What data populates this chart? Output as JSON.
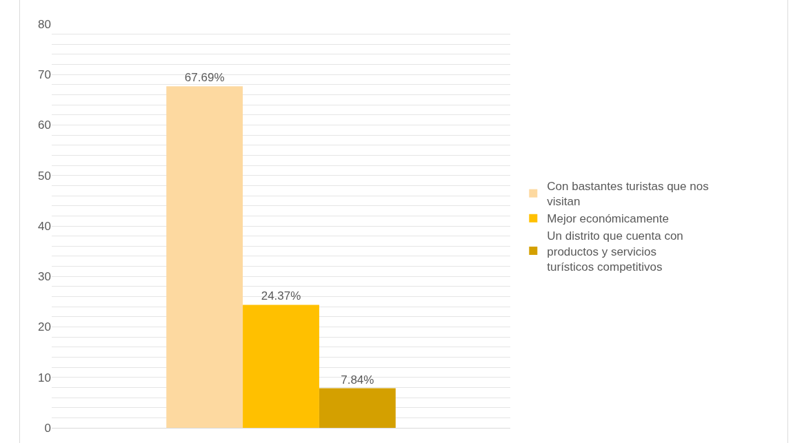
{
  "chart_data": {
    "type": "bar",
    "categories": [
      null
    ],
    "series": [
      {
        "name": "Con bastantes turistas que nos visitan",
        "color": "#fdd9a0",
        "values": [
          67.69
        ],
        "value_labels": [
          "67.69%"
        ]
      },
      {
        "name": "Mejor económicamente",
        "color": "#ffc000",
        "values": [
          24.37
        ],
        "value_labels": [
          "24.37%"
        ]
      },
      {
        "name": "Un distrito que cuenta con productos y servicios turísticos competitivos",
        "color": "#d4a000",
        "values": [
          7.84
        ],
        "value_labels": [
          "7.84%"
        ]
      }
    ],
    "ylim": [
      0,
      80
    ],
    "yticks": [
      0,
      {
        "value": 2,
        "label": null
      },
      {
        "value": 4,
        "label": null
      },
      {
        "value": 6,
        "label": null
      },
      {
        "value": 8,
        "label": null
      },
      10,
      {
        "value": 12,
        "label": null
      },
      {
        "value": 14,
        "label": null
      },
      {
        "value": 16,
        "label": null
      },
      {
        "value": 18,
        "label": null
      },
      20,
      {
        "value": 22,
        "label": null
      },
      {
        "value": 24,
        "label": null
      },
      {
        "value": 26,
        "label": null
      },
      {
        "value": 28,
        "label": null
      },
      30,
      {
        "value": 32,
        "label": null
      },
      {
        "value": 34,
        "label": null
      },
      {
        "value": 36,
        "label": null
      },
      {
        "value": 38,
        "label": null
      },
      40,
      {
        "value": 42,
        "label": null
      },
      {
        "value": 44,
        "label": null
      },
      {
        "value": 46,
        "label": null
      },
      {
        "value": 48,
        "label": null
      },
      50,
      {
        "value": 52,
        "label": null
      },
      {
        "value": 54,
        "label": null
      },
      {
        "value": 56,
        "label": null
      },
      {
        "value": 58,
        "label": null
      },
      60,
      {
        "value": 62,
        "label": null
      },
      {
        "value": 64,
        "label": null
      },
      {
        "value": 66,
        "label": null
      },
      {
        "value": 68,
        "label": null
      },
      70,
      {
        "value": 72,
        "label": null
      },
      {
        "value": 74,
        "label": null
      },
      {
        "value": 76,
        "label": null
      },
      {
        "value": 78,
        "label": null
      },
      80
    ],
    "grid": "y",
    "legend": "right"
  }
}
